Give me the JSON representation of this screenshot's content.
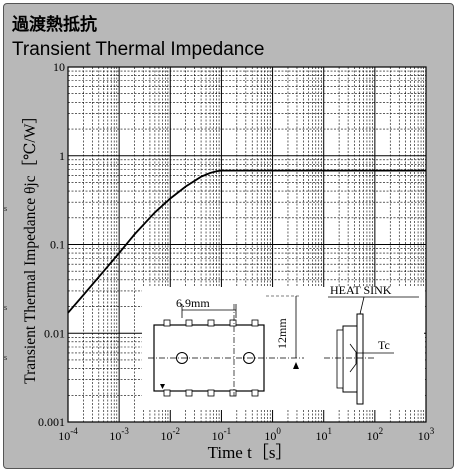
{
  "title_jp": "過渡熱抵抗",
  "title_en": "Transient Thermal Impedance",
  "chart_data": {
    "type": "line",
    "title": "Transient Thermal Impedance",
    "xlabel": "Time  t［s］",
    "ylabel": "Transient Thermal Impedance  θjc［℃/W］",
    "xscale": "log",
    "yscale": "log",
    "xlim": [
      0.0001,
      1000
    ],
    "ylim": [
      0.001,
      10
    ],
    "x_tick_labels": [
      {
        "base": "10",
        "exp": "-4"
      },
      {
        "base": "10",
        "exp": "-3"
      },
      {
        "base": "10",
        "exp": "-2"
      },
      {
        "base": "10",
        "exp": "-1"
      },
      {
        "base": "10",
        "exp": "0"
      },
      {
        "base": "10",
        "exp": "1"
      },
      {
        "base": "10",
        "exp": "2"
      },
      {
        "base": "10",
        "exp": "3"
      }
    ],
    "y_tick_labels": [
      "10",
      "1",
      "0.1",
      "0.01",
      "0.001"
    ],
    "grid": true,
    "series": [
      {
        "x": [
          0.0001,
          0.0002,
          0.0005,
          0.001,
          0.002,
          0.005,
          0.01,
          0.02,
          0.04,
          0.06,
          0.08,
          0.1,
          0.2,
          1,
          10,
          100,
          1000
        ],
        "y": [
          0.017,
          0.027,
          0.05,
          0.08,
          0.13,
          0.23,
          0.33,
          0.45,
          0.58,
          0.64,
          0.67,
          0.68,
          0.68,
          0.68,
          0.68,
          0.68,
          0.68
        ]
      }
    ]
  },
  "inset": {
    "dim_width": "6.9mm",
    "dim_height": "12mm",
    "heat_sink_label": "HEAT SINK",
    "tc_label": "Tc"
  },
  "edge_marks": [
    "s",
    "s",
    "s"
  ]
}
